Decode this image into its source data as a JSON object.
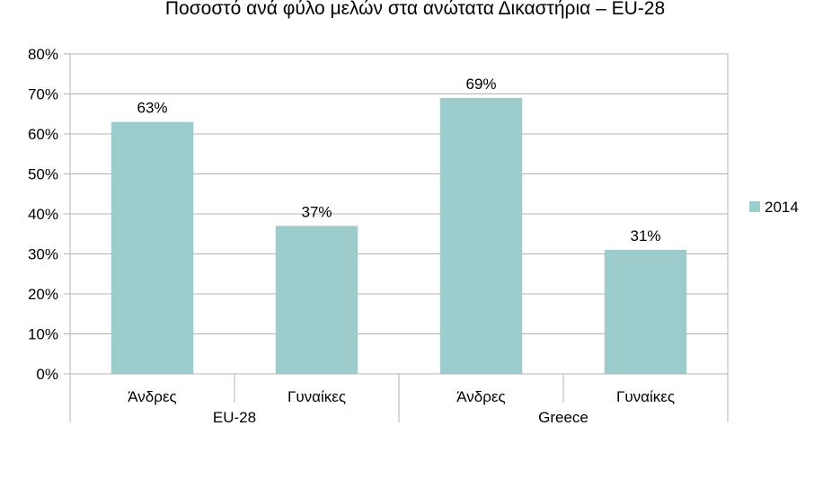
{
  "chart_data": {
    "type": "bar",
    "title": "Ποσοστό ανά φύλο μελών στα ανώτατα Δικαστήρια –  EU-28",
    "groups": [
      {
        "name": "EU-28",
        "categories": [
          "Άνδρες",
          "Γυναίκες"
        ]
      },
      {
        "name": "Greece",
        "categories": [
          "Άνδρες",
          "Γυναίκες"
        ]
      }
    ],
    "series": [
      {
        "name": "2014",
        "values": [
          63,
          37,
          69,
          31
        ],
        "labels": [
          "63%",
          "37%",
          "69%",
          "31%"
        ]
      }
    ],
    "ylim": [
      0,
      80
    ],
    "yticks": [
      "0%",
      "10%",
      "20%",
      "30%",
      "40%",
      "50%",
      "60%",
      "70%",
      "80%"
    ],
    "grid": true,
    "legend_position": "right",
    "colors": {
      "bar": "#9ccccc",
      "grid": "#b3b3b3",
      "axis": "#b3b3b3"
    }
  }
}
